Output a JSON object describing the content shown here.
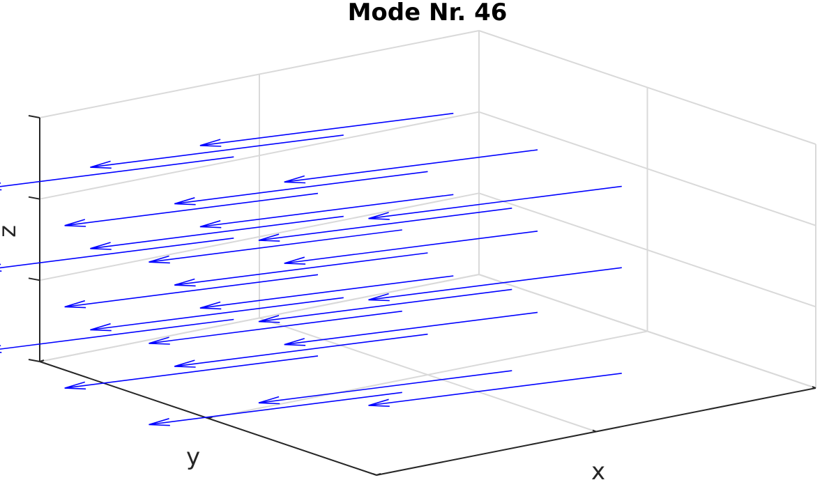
{
  "chart_data": {
    "type": "quiver3",
    "title": "Mode Nr. 46",
    "xlabel": "x",
    "ylabel": "y",
    "zlabel": "z",
    "xlim": [
      0,
      2
    ],
    "ylim": [
      0,
      2
    ],
    "zlim": [
      0,
      3
    ],
    "grid": true,
    "tick_labels_visible": false,
    "view": "3d",
    "series": [
      {
        "color": "#0000ff",
        "vectors": [
          {
            "x": 0.5,
            "y": 1.5,
            "z": 2.6,
            "u": -1.0,
            "v": 0.2,
            "w": 0
          },
          {
            "x": 1.0,
            "y": 1.5,
            "z": 2.6,
            "u": -1.0,
            "v": 0.2,
            "w": 0
          },
          {
            "x": 1.5,
            "y": 1.5,
            "z": 2.6,
            "u": -1.0,
            "v": 0.2,
            "w": 0
          },
          {
            "x": 0.5,
            "y": 1.0,
            "z": 2.5,
            "u": -1.0,
            "v": 0.2,
            "w": 0
          },
          {
            "x": 1.0,
            "y": 1.0,
            "z": 2.5,
            "u": -1.0,
            "v": 0.2,
            "w": 0
          },
          {
            "x": 1.5,
            "y": 1.0,
            "z": 2.5,
            "u": -1.0,
            "v": 0.2,
            "w": 0
          },
          {
            "x": 0.5,
            "y": 0.5,
            "z": 2.4,
            "u": -1.0,
            "v": 0.2,
            "w": 0
          },
          {
            "x": 1.0,
            "y": 0.5,
            "z": 2.4,
            "u": -1.0,
            "v": 0.2,
            "w": 0
          },
          {
            "x": 1.5,
            "y": 0.5,
            "z": 2.4,
            "u": -1.0,
            "v": 0.2,
            "w": 0
          },
          {
            "x": 0.5,
            "y": 1.5,
            "z": 1.6,
            "u": -1.0,
            "v": 0.2,
            "w": 0
          },
          {
            "x": 1.0,
            "y": 1.5,
            "z": 1.6,
            "u": -1.0,
            "v": 0.2,
            "w": 0
          },
          {
            "x": 1.5,
            "y": 1.5,
            "z": 1.6,
            "u": -1.0,
            "v": 0.2,
            "w": 0
          },
          {
            "x": 0.5,
            "y": 1.0,
            "z": 1.5,
            "u": -1.0,
            "v": 0.2,
            "w": 0
          },
          {
            "x": 1.0,
            "y": 1.0,
            "z": 1.5,
            "u": -1.0,
            "v": 0.2,
            "w": 0
          },
          {
            "x": 1.5,
            "y": 1.0,
            "z": 1.5,
            "u": -1.0,
            "v": 0.2,
            "w": 0
          },
          {
            "x": 0.5,
            "y": 0.5,
            "z": 1.4,
            "u": -1.0,
            "v": 0.2,
            "w": 0
          },
          {
            "x": 1.0,
            "y": 0.5,
            "z": 1.4,
            "u": -1.0,
            "v": 0.2,
            "w": 0
          },
          {
            "x": 1.5,
            "y": 0.5,
            "z": 1.4,
            "u": -1.0,
            "v": 0.2,
            "w": 0
          },
          {
            "x": 0.5,
            "y": 1.5,
            "z": 0.6,
            "u": -1.0,
            "v": 0.2,
            "w": 0
          },
          {
            "x": 1.0,
            "y": 1.5,
            "z": 0.6,
            "u": -1.0,
            "v": 0.2,
            "w": 0
          },
          {
            "x": 1.5,
            "y": 1.5,
            "z": 0.6,
            "u": -1.0,
            "v": 0.2,
            "w": 0
          },
          {
            "x": 0.5,
            "y": 1.0,
            "z": 0.5,
            "u": -1.0,
            "v": 0.2,
            "w": 0
          },
          {
            "x": 1.0,
            "y": 1.0,
            "z": 0.5,
            "u": -1.0,
            "v": 0.2,
            "w": 0
          },
          {
            "x": 1.5,
            "y": 1.0,
            "z": 0.5,
            "u": -1.0,
            "v": 0.2,
            "w": 0
          },
          {
            "x": 0.5,
            "y": 0.5,
            "z": 0.4,
            "u": -1.0,
            "v": 0.2,
            "w": 0
          },
          {
            "x": 1.0,
            "y": 0.5,
            "z": 0.4,
            "u": -1.0,
            "v": 0.2,
            "w": 0
          },
          {
            "x": 1.5,
            "y": 0.5,
            "z": 0.1,
            "u": -1.0,
            "v": 0.2,
            "w": 0
          }
        ]
      }
    ]
  }
}
